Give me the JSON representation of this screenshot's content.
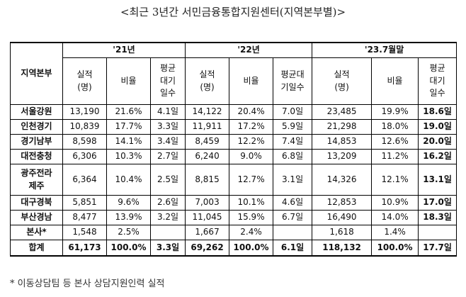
{
  "title": "<최근 3년간 서민금융통합지원센터(지역본부별)>",
  "table": {
    "region_header": "지역본부",
    "years": [
      "'21년",
      "'22년",
      "'23.7월말"
    ],
    "sub_headers": {
      "count": "실적\n(명)",
      "ratio": "비율"
    },
    "wait_headers": [
      "평균\n대기\n일수",
      "평균대\n기일수",
      "평균\n대기\n일수"
    ],
    "rows": [
      {
        "region": "서울강원",
        "y21": [
          "13,190",
          "21.6%",
          "4.1일"
        ],
        "y22": [
          "14,122",
          "20.4%",
          "7.0일"
        ],
        "y23": [
          "23,485",
          "19.9%",
          "18.6일"
        ]
      },
      {
        "region": "인천경기",
        "y21": [
          "10,839",
          "17.7%",
          "3.3일"
        ],
        "y22": [
          "11,911",
          "17.2%",
          "5.9일"
        ],
        "y23": [
          "21,298",
          "18.0%",
          "19.0일"
        ]
      },
      {
        "region": "경기남부",
        "y21": [
          "8,598",
          "14.1%",
          "3.4일"
        ],
        "y22": [
          "8,459",
          "12.2%",
          "7.4일"
        ],
        "y23": [
          "14,853",
          "12.6%",
          "20.0일"
        ]
      },
      {
        "region": "대전충청",
        "y21": [
          "6,306",
          "10.3%",
          "2.7일"
        ],
        "y22": [
          "6,240",
          "9.0%",
          "6.8일"
        ],
        "y23": [
          "13,209",
          "11.2%",
          "16.2일"
        ]
      },
      {
        "region": "광주전라\n제주",
        "y21": [
          "6,364",
          "10.4%",
          "2.5일"
        ],
        "y22": [
          "8,815",
          "12.7%",
          "3.1일"
        ],
        "y23": [
          "14,326",
          "12.1%",
          "13.1일"
        ]
      },
      {
        "region": "대구경북",
        "y21": [
          "5,851",
          "9.6%",
          "2.6일"
        ],
        "y22": [
          "7,003",
          "10.1%",
          "4.6일"
        ],
        "y23": [
          "12,853",
          "10.9%",
          "17.0일"
        ]
      },
      {
        "region": "부산경남",
        "y21": [
          "8,477",
          "13.9%",
          "3.2일"
        ],
        "y22": [
          "11,045",
          "15.9%",
          "6.7일"
        ],
        "y23": [
          "16,490",
          "14.0%",
          "18.3일"
        ]
      },
      {
        "region": "본사*",
        "y21": [
          "1,548",
          "2.5%",
          ""
        ],
        "y22": [
          "1,667",
          "2.4%",
          ""
        ],
        "y23": [
          "1,618",
          "1.4%",
          ""
        ]
      }
    ],
    "total": {
      "region": "합계",
      "y21": [
        "61,173",
        "100.0%",
        "3.3일"
      ],
      "y22": [
        "69,262",
        "100.0%",
        "6.1일"
      ],
      "y23": [
        "118,132",
        "100.0%",
        "17.7일"
      ]
    }
  },
  "footnote": "* 이동상담팀 등 본사 상담지원인력 실적"
}
